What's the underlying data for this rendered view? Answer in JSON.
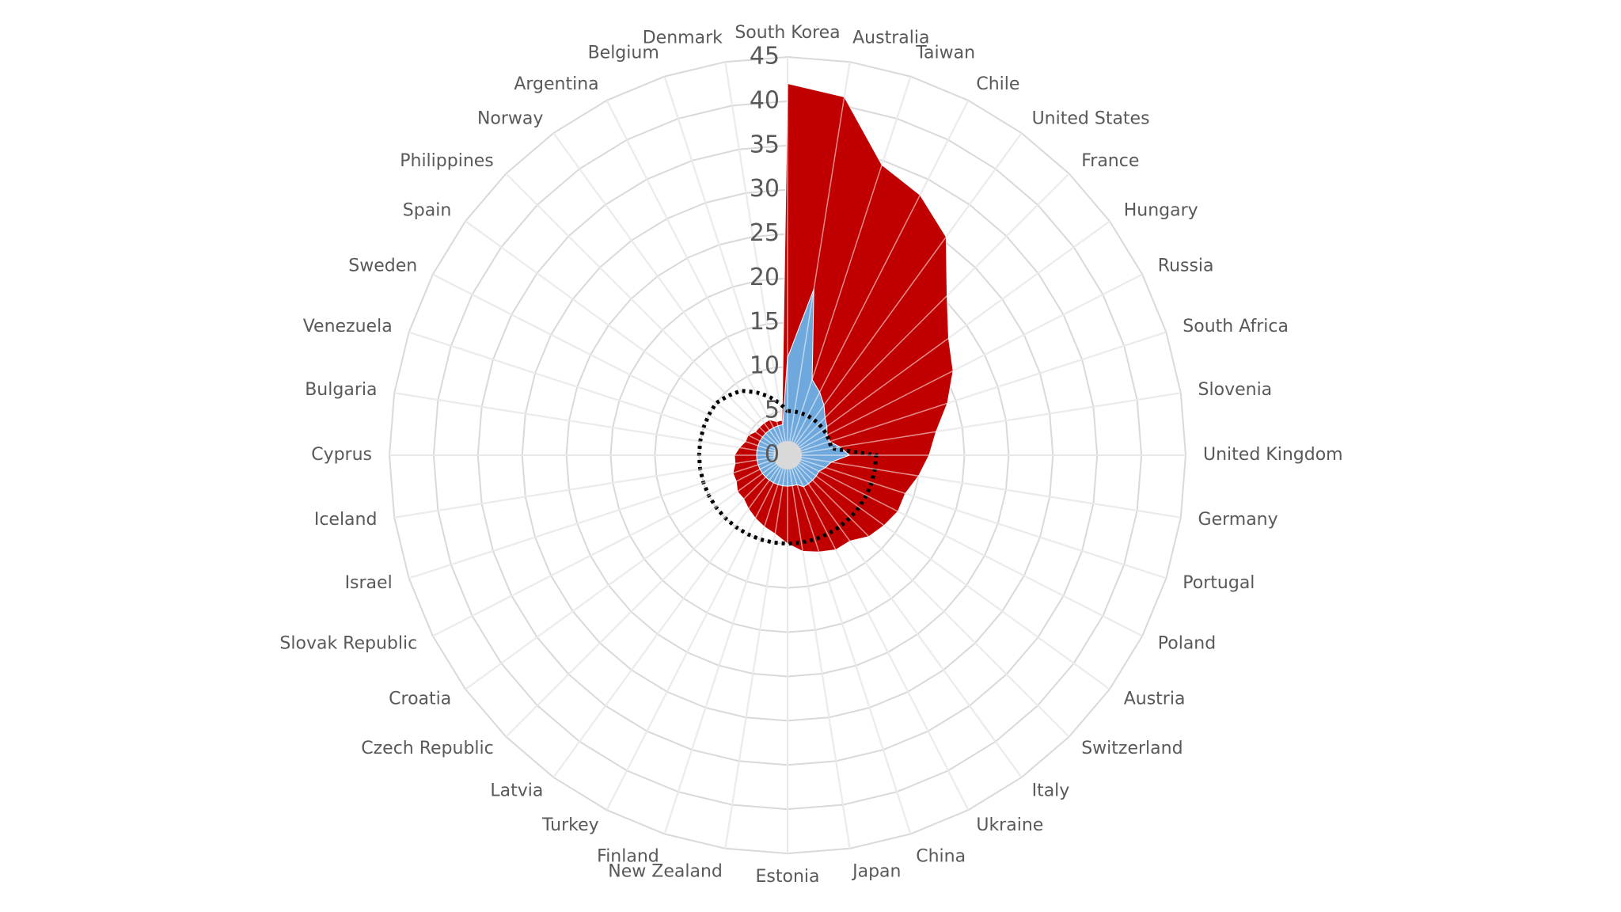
{
  "chart_data": {
    "type": "radar",
    "categories": [
      "South Korea",
      "Australia",
      "Taiwan",
      "Chile",
      "United States",
      "France",
      "Hungary",
      "Russia",
      "South Africa",
      "Slovenia",
      "United Kingdom",
      "Germany",
      "Portugal",
      "Poland",
      "Austria",
      "Switzerland",
      "Italy",
      "Ukraine",
      "China",
      "Japan",
      "Estonia",
      "New Zealand",
      "Finland",
      "Turkey",
      "Latvia",
      "Czech Republic",
      "Croatia",
      "Slovak Republic",
      "Israel",
      "Iceland",
      "Cyprus",
      "Bulgaria",
      "Venezuela",
      "Sweden",
      "Spain",
      "Philippines",
      "Norway",
      "Argentina",
      "Belgium",
      "Denmark"
    ],
    "series": [
      {
        "color": "#c00000",
        "style": "area",
        "values": [
          42,
          41,
          34.5,
          33,
          30.5,
          25.5,
          22.5,
          21,
          19,
          17,
          16,
          15,
          14,
          14,
          13.5,
          13,
          12,
          12,
          11.5,
          11,
          10,
          9,
          8.5,
          8,
          7.5,
          7,
          7,
          6.5,
          6.5,
          6,
          6,
          5.5,
          5,
          5,
          4.5,
          4.5,
          4.5,
          4.5,
          4,
          4
        ]
      },
      {
        "color": "#6fa8dc",
        "style": "area",
        "values": [
          11,
          19,
          9,
          8,
          7,
          6,
          5.5,
          5,
          5,
          6,
          7,
          5,
          4.5,
          4,
          4,
          4,
          4,
          4,
          3.5,
          3.5,
          3.5,
          3.5,
          3.5,
          3.5,
          3.5,
          3.5,
          3.5,
          3.5,
          3.5,
          3.5,
          3.5,
          3.5,
          3.5,
          3.5,
          3.5,
          3.5,
          3.5,
          3.5,
          3.5,
          3.5
        ]
      },
      {
        "color": "#000000",
        "style": "dotted-line",
        "values": [
          5,
          5,
          5,
          5,
          5,
          5,
          5,
          5,
          5,
          5,
          10,
          10,
          10,
          10,
          10,
          10,
          10,
          10,
          10,
          10,
          10,
          10,
          10,
          10,
          10,
          10,
          10,
          10,
          10,
          10,
          10,
          10,
          10,
          10,
          10,
          9.5,
          9,
          8,
          7,
          6
        ]
      }
    ],
    "ylim": [
      0,
      45
    ],
    "yticks": [
      0,
      5,
      10,
      15,
      20,
      25,
      30,
      35,
      40,
      45
    ],
    "grid": true
  }
}
